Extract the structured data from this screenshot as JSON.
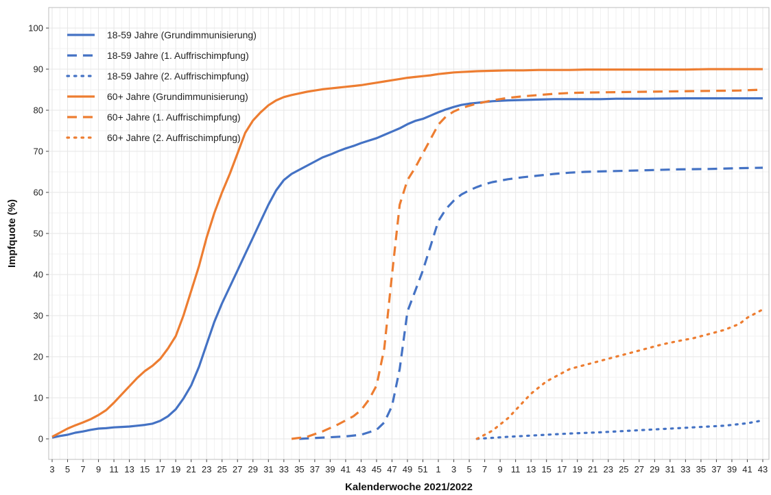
{
  "chart_data": {
    "type": "line",
    "title": "",
    "xlabel": "Kalenderwoche 2021/2022",
    "ylabel": "Impfquote (%)",
    "ylim": [
      0,
      100
    ],
    "yticks": [
      0,
      10,
      20,
      30,
      40,
      50,
      60,
      70,
      80,
      90,
      100
    ],
    "xlim": [
      3,
      95
    ],
    "xtick_labels": [
      "3",
      "5",
      "7",
      "9",
      "11",
      "13",
      "15",
      "17",
      "19",
      "21",
      "23",
      "25",
      "27",
      "29",
      "31",
      "33",
      "35",
      "37",
      "39",
      "41",
      "43",
      "45",
      "47",
      "49",
      "51",
      "1",
      "3",
      "5",
      "7",
      "9",
      "11",
      "13",
      "15",
      "17",
      "19",
      "21",
      "23",
      "25",
      "27",
      "29",
      "31",
      "33",
      "35",
      "37",
      "39",
      "41",
      "43"
    ],
    "grid": true,
    "legend_position": "top-left",
    "series": [
      {
        "name": "18-59 Jahre (Grundimmunisierung)",
        "color": "#4472C4",
        "dash": "solid",
        "points": [
          [
            3,
            0.3
          ],
          [
            4,
            0.7
          ],
          [
            5,
            1.0
          ],
          [
            6,
            1.5
          ],
          [
            7,
            1.8
          ],
          [
            8,
            2.2
          ],
          [
            9,
            2.5
          ],
          [
            10,
            2.6
          ],
          [
            11,
            2.8
          ],
          [
            12,
            2.9
          ],
          [
            13,
            3.0
          ],
          [
            14,
            3.2
          ],
          [
            15,
            3.4
          ],
          [
            16,
            3.7
          ],
          [
            17,
            4.4
          ],
          [
            18,
            5.5
          ],
          [
            19,
            7.2
          ],
          [
            20,
            9.8
          ],
          [
            21,
            13.0
          ],
          [
            22,
            17.5
          ],
          [
            23,
            23.0
          ],
          [
            24,
            28.5
          ],
          [
            25,
            33.0
          ],
          [
            26,
            37.0
          ],
          [
            27,
            41.0
          ],
          [
            28,
            45.0
          ],
          [
            29,
            49.0
          ],
          [
            30,
            53.0
          ],
          [
            31,
            57.0
          ],
          [
            32,
            60.5
          ],
          [
            33,
            63.0
          ],
          [
            34,
            64.5
          ],
          [
            35,
            65.5
          ],
          [
            36,
            66.5
          ],
          [
            37,
            67.5
          ],
          [
            38,
            68.5
          ],
          [
            39,
            69.2
          ],
          [
            40,
            70.0
          ],
          [
            41,
            70.7
          ],
          [
            42,
            71.3
          ],
          [
            43,
            72.0
          ],
          [
            44,
            72.6
          ],
          [
            45,
            73.2
          ],
          [
            46,
            74.0
          ],
          [
            47,
            74.8
          ],
          [
            48,
            75.6
          ],
          [
            49,
            76.6
          ],
          [
            50,
            77.4
          ],
          [
            51,
            77.9
          ],
          [
            52,
            78.7
          ],
          [
            53,
            79.5
          ],
          [
            54,
            80.2
          ],
          [
            55,
            80.8
          ],
          [
            56,
            81.3
          ],
          [
            57,
            81.6
          ],
          [
            58,
            81.8
          ],
          [
            59,
            82.0
          ],
          [
            60,
            82.2
          ],
          [
            62,
            82.4
          ],
          [
            64,
            82.5
          ],
          [
            66,
            82.6
          ],
          [
            68,
            82.7
          ],
          [
            70,
            82.7
          ],
          [
            74,
            82.7
          ],
          [
            76,
            82.8
          ],
          [
            80,
            82.8
          ],
          [
            85,
            82.9
          ],
          [
            90,
            82.9
          ],
          [
            95,
            82.9
          ]
        ]
      },
      {
        "name": "18-59 Jahre (1. Auffrischimpfung)",
        "color": "#4472C4",
        "dash": "dashed",
        "points": [
          [
            35,
            0.0
          ],
          [
            37,
            0.2
          ],
          [
            39,
            0.4
          ],
          [
            41,
            0.6
          ],
          [
            43,
            1.0
          ],
          [
            45,
            2.2
          ],
          [
            46,
            4.0
          ],
          [
            47,
            8.0
          ],
          [
            48,
            17.0
          ],
          [
            49,
            31.0
          ],
          [
            50,
            36.0
          ],
          [
            51,
            41.0
          ],
          [
            52,
            47.0
          ],
          [
            53,
            53.0
          ],
          [
            54,
            56.0
          ],
          [
            55,
            58.0
          ],
          [
            56,
            59.5
          ],
          [
            57,
            60.5
          ],
          [
            58,
            61.3
          ],
          [
            59,
            62.0
          ],
          [
            60,
            62.5
          ],
          [
            62,
            63.2
          ],
          [
            64,
            63.7
          ],
          [
            66,
            64.1
          ],
          [
            68,
            64.5
          ],
          [
            70,
            64.8
          ],
          [
            72,
            65.0
          ],
          [
            76,
            65.2
          ],
          [
            80,
            65.4
          ],
          [
            84,
            65.6
          ],
          [
            88,
            65.7
          ],
          [
            92,
            65.9
          ],
          [
            95,
            66.0
          ]
        ]
      },
      {
        "name": "18-59 Jahre (2. Auffrischimpfung)",
        "color": "#4472C4",
        "dash": "dotted",
        "points": [
          [
            58,
            0.0
          ],
          [
            62,
            0.5
          ],
          [
            66,
            0.9
          ],
          [
            70,
            1.3
          ],
          [
            74,
            1.6
          ],
          [
            78,
            2.0
          ],
          [
            82,
            2.4
          ],
          [
            86,
            2.8
          ],
          [
            90,
            3.2
          ],
          [
            93,
            3.8
          ],
          [
            95,
            4.5
          ]
        ]
      },
      {
        "name": "60+ Jahre (Grundimmunisierung)",
        "color": "#ED7D31",
        "dash": "solid",
        "points": [
          [
            3,
            0.5
          ],
          [
            4,
            1.5
          ],
          [
            5,
            2.5
          ],
          [
            6,
            3.3
          ],
          [
            7,
            4.0
          ],
          [
            8,
            4.8
          ],
          [
            9,
            5.8
          ],
          [
            10,
            7.0
          ],
          [
            11,
            8.8
          ],
          [
            12,
            10.8
          ],
          [
            13,
            12.8
          ],
          [
            14,
            14.8
          ],
          [
            15,
            16.5
          ],
          [
            16,
            17.8
          ],
          [
            17,
            19.5
          ],
          [
            18,
            22.0
          ],
          [
            19,
            25.0
          ],
          [
            20,
            30.0
          ],
          [
            21,
            36.0
          ],
          [
            22,
            42.0
          ],
          [
            23,
            49.0
          ],
          [
            24,
            55.0
          ],
          [
            25,
            60.0
          ],
          [
            26,
            64.5
          ],
          [
            27,
            69.5
          ],
          [
            28,
            74.5
          ],
          [
            29,
            77.5
          ],
          [
            30,
            79.5
          ],
          [
            31,
            81.2
          ],
          [
            32,
            82.4
          ],
          [
            33,
            83.2
          ],
          [
            34,
            83.7
          ],
          [
            35,
            84.1
          ],
          [
            36,
            84.5
          ],
          [
            37,
            84.8
          ],
          [
            38,
            85.1
          ],
          [
            39,
            85.3
          ],
          [
            40,
            85.5
          ],
          [
            41,
            85.7
          ],
          [
            42,
            85.9
          ],
          [
            43,
            86.1
          ],
          [
            44,
            86.4
          ],
          [
            45,
            86.7
          ],
          [
            46,
            87.0
          ],
          [
            47,
            87.3
          ],
          [
            48,
            87.6
          ],
          [
            49,
            87.9
          ],
          [
            50,
            88.1
          ],
          [
            51,
            88.3
          ],
          [
            52,
            88.5
          ],
          [
            53,
            88.8
          ],
          [
            54,
            89.0
          ],
          [
            55,
            89.2
          ],
          [
            56,
            89.3
          ],
          [
            57,
            89.4
          ],
          [
            58,
            89.5
          ],
          [
            60,
            89.6
          ],
          [
            62,
            89.7
          ],
          [
            64,
            89.7
          ],
          [
            66,
            89.8
          ],
          [
            70,
            89.8
          ],
          [
            72,
            89.9
          ],
          [
            80,
            89.9
          ],
          [
            85,
            89.9
          ],
          [
            88,
            90.0
          ],
          [
            95,
            90.0
          ]
        ]
      },
      {
        "name": "60+ Jahre (1. Auffrischimpfung)",
        "color": "#ED7D31",
        "dash": "dashed",
        "points": [
          [
            34,
            0.0
          ],
          [
            36,
            0.5
          ],
          [
            38,
            1.8
          ],
          [
            40,
            3.5
          ],
          [
            42,
            5.5
          ],
          [
            43,
            7.0
          ],
          [
            44,
            9.5
          ],
          [
            45,
            13.0
          ],
          [
            46,
            22.0
          ],
          [
            47,
            40.0
          ],
          [
            48,
            57.0
          ],
          [
            49,
            63.0
          ],
          [
            50,
            66.0
          ],
          [
            51,
            69.5
          ],
          [
            52,
            73.0
          ],
          [
            53,
            76.5
          ],
          [
            54,
            78.5
          ],
          [
            55,
            79.7
          ],
          [
            56,
            80.5
          ],
          [
            57,
            81.1
          ],
          [
            58,
            81.6
          ],
          [
            59,
            82.0
          ],
          [
            60,
            82.4
          ],
          [
            62,
            83.0
          ],
          [
            64,
            83.4
          ],
          [
            66,
            83.7
          ],
          [
            68,
            84.0
          ],
          [
            70,
            84.2
          ],
          [
            72,
            84.3
          ],
          [
            76,
            84.4
          ],
          [
            80,
            84.5
          ],
          [
            84,
            84.6
          ],
          [
            88,
            84.7
          ],
          [
            92,
            84.8
          ],
          [
            95,
            85.0
          ]
        ]
      },
      {
        "name": "60+ Jahre (2. Auffrischimpfung)",
        "color": "#ED7D31",
        "dash": "dotted",
        "points": [
          [
            58,
            0.0
          ],
          [
            59,
            1.0
          ],
          [
            60,
            2.0
          ],
          [
            61,
            3.5
          ],
          [
            62,
            5.0
          ],
          [
            63,
            7.0
          ],
          [
            64,
            9.0
          ],
          [
            65,
            11.0
          ],
          [
            66,
            12.5
          ],
          [
            67,
            14.0
          ],
          [
            68,
            15.0
          ],
          [
            69,
            16.0
          ],
          [
            70,
            17.0
          ],
          [
            71,
            17.5
          ],
          [
            72,
            18.0
          ],
          [
            74,
            19.0
          ],
          [
            76,
            20.0
          ],
          [
            78,
            21.0
          ],
          [
            80,
            22.0
          ],
          [
            82,
            23.0
          ],
          [
            84,
            23.8
          ],
          [
            86,
            24.5
          ],
          [
            88,
            25.5
          ],
          [
            90,
            26.5
          ],
          [
            92,
            28.0
          ],
          [
            93,
            29.5
          ],
          [
            95,
            31.5
          ]
        ]
      }
    ]
  }
}
